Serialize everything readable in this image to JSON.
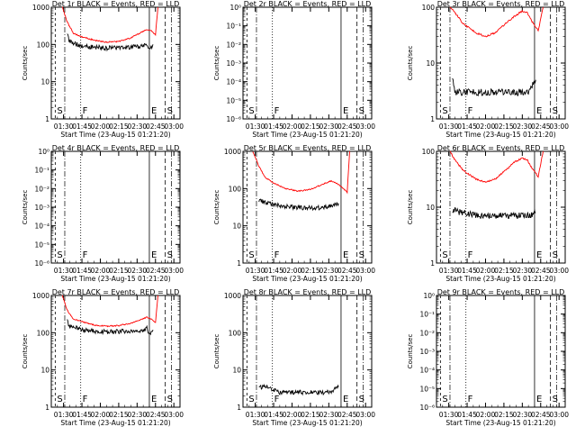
{
  "chart_data": [
    {
      "type": "line",
      "title": "Det 1r BLACK = Events, RED = LLD",
      "ylabel": "Counts/sec",
      "xlabel": "Start Time (23-Aug-15 01:21:20)",
      "yscale": "log",
      "ylim": [
        1,
        1000
      ],
      "xlim": [
        "01:20",
        "03:05"
      ],
      "y_ticks": [
        "1",
        "10",
        "100",
        "1000"
      ],
      "x_ticks": [
        "01:30",
        "01:45",
        "02:00",
        "02:15",
        "02:30",
        "02:45",
        "03:00"
      ],
      "markers": [
        {
          "label": "S",
          "time": "01:21"
        },
        {
          "label": "F",
          "time": "01:44"
        },
        {
          "label": "E",
          "time": "02:40"
        },
        {
          "label": "S",
          "time": "02:53"
        }
      ],
      "series": [
        {
          "color": "#ff0000",
          "x": [
            "01:29",
            "01:33",
            "01:38",
            "01:45",
            "01:55",
            "02:05",
            "02:15",
            "02:25",
            "02:32",
            "02:38",
            "02:42",
            "02:45",
            "02:47"
          ],
          "y": [
            1000,
            400,
            200,
            160,
            130,
            115,
            120,
            150,
            200,
            250,
            230,
            180,
            1000
          ]
        },
        {
          "color": "#000000",
          "x": [
            "01:33",
            "01:35",
            "01:45",
            "01:55",
            "02:05",
            "02:15",
            "02:25",
            "02:35",
            "02:38",
            "02:40",
            "02:43"
          ],
          "y": [
            180,
            120,
            90,
            85,
            80,
            82,
            85,
            90,
            100,
            70,
            100
          ]
        }
      ]
    },
    {
      "type": "line",
      "title": "Det 2r BLACK = Events, RED = LLD",
      "ylabel": "Counts/sec",
      "xlabel": "Start Time (23-Aug-15 01:21:20)",
      "yscale": "log",
      "ylim": [
        1e-06,
        1
      ],
      "y_ticks": [
        "10⁻⁶",
        "10⁻⁵",
        "10⁻⁴",
        "10⁻³",
        "10⁻²",
        "10⁻¹",
        "10⁰"
      ],
      "x_ticks": [
        "01:30",
        "01:45",
        "02:00",
        "02:15",
        "02:30",
        "02:45",
        "03:00"
      ],
      "markers": [
        {
          "label": "S",
          "time": "01:21"
        },
        {
          "label": "F",
          "time": "01:44"
        },
        {
          "label": "E",
          "time": "02:40"
        },
        {
          "label": "S",
          "time": "02:53"
        }
      ],
      "series": []
    },
    {
      "type": "line",
      "title": "Det 3r BLACK = Events, RED = LLD",
      "ylabel": "Counts/sec",
      "xlabel": "Start Time (23-Aug-15 01:21:20)",
      "yscale": "log",
      "ylim": [
        1,
        100
      ],
      "y_ticks": [
        "1",
        "10",
        "100"
      ],
      "x_ticks": [
        "01:30",
        "01:45",
        "02:00",
        "02:15",
        "02:30",
        "02:45",
        "03:00"
      ],
      "markers": [
        {
          "label": "S",
          "time": "01:21"
        },
        {
          "label": "F",
          "time": "01:44"
        },
        {
          "label": "E",
          "time": "02:40"
        },
        {
          "label": "S",
          "time": "02:53"
        }
      ],
      "series": [
        {
          "color": "#ff0000",
          "x": [
            "01:31",
            "01:35",
            "01:42",
            "01:52",
            "02:00",
            "02:08",
            "02:16",
            "02:24",
            "02:30",
            "02:34",
            "02:38",
            "02:43",
            "02:47"
          ],
          "y": [
            100,
            80,
            50,
            35,
            30,
            35,
            50,
            70,
            85,
            80,
            55,
            38,
            100
          ]
        },
        {
          "color": "#000000",
          "x": [
            "01:33",
            "01:35",
            "01:50",
            "02:05",
            "02:20",
            "02:35",
            "02:41"
          ],
          "y": [
            5,
            3,
            3,
            3,
            3,
            3,
            5
          ]
        }
      ]
    },
    {
      "type": "line",
      "title": "Det 4r BLACK = Events, RED = LLD",
      "ylabel": "Counts/sec",
      "xlabel": "Start Time (23-Aug-15 01:21:20)",
      "yscale": "log",
      "ylim": [
        1e-06,
        1
      ],
      "y_ticks": [
        "10⁻⁶",
        "10⁻⁵",
        "10⁻⁴",
        "10⁻³",
        "10⁻²",
        "10⁻¹",
        "10⁰"
      ],
      "x_ticks": [
        "01:30",
        "01:45",
        "02:00",
        "02:15",
        "02:30",
        "02:45",
        "03:00"
      ],
      "markers": [
        {
          "label": "S",
          "time": "01:21"
        },
        {
          "label": "F",
          "time": "01:44"
        },
        {
          "label": "E",
          "time": "02:40"
        },
        {
          "label": "S",
          "time": "02:53"
        }
      ],
      "series": []
    },
    {
      "type": "line",
      "title": "Det 5r BLACK = Events, RED = LLD",
      "ylabel": "Counts/sec",
      "xlabel": "Start Time (23-Aug-15 01:21:20)",
      "yscale": "log",
      "ylim": [
        1,
        1000
      ],
      "y_ticks": [
        "1",
        "10",
        "100",
        "1000"
      ],
      "x_ticks": [
        "01:30",
        "01:45",
        "02:00",
        "02:15",
        "02:30",
        "02:45",
        "03:00"
      ],
      "markers": [
        {
          "label": "S",
          "time": "01:21"
        },
        {
          "label": "F",
          "time": "01:44"
        },
        {
          "label": "E",
          "time": "02:40"
        },
        {
          "label": "S",
          "time": "02:53"
        }
      ],
      "series": [
        {
          "color": "#ff0000",
          "x": [
            "01:28",
            "01:33",
            "01:38",
            "01:45",
            "01:55",
            "02:05",
            "02:15",
            "02:25",
            "02:32",
            "02:38",
            "02:42",
            "02:45",
            "02:47"
          ],
          "y": [
            1000,
            400,
            200,
            140,
            100,
            85,
            95,
            130,
            160,
            130,
            100,
            80,
            1000
          ]
        },
        {
          "color": "#000000",
          "x": [
            "01:33",
            "01:40",
            "01:50",
            "02:00",
            "02:10",
            "02:20",
            "02:30",
            "02:38"
          ],
          "y": [
            50,
            40,
            35,
            32,
            30,
            30,
            32,
            40
          ]
        }
      ]
    },
    {
      "type": "line",
      "title": "Det 6r BLACK = Events, RED = LLD",
      "ylabel": "Counts/sec",
      "xlabel": "Start Time (23-Aug-15 01:21:20)",
      "yscale": "log",
      "ylim": [
        1,
        100
      ],
      "y_ticks": [
        "1",
        "10",
        "100"
      ],
      "x_ticks": [
        "01:30",
        "01:45",
        "02:00",
        "02:15",
        "02:30",
        "02:45",
        "03:00"
      ],
      "markers": [
        {
          "label": "S",
          "time": "01:21"
        },
        {
          "label": "F",
          "time": "01:44"
        },
        {
          "label": "E",
          "time": "02:40"
        },
        {
          "label": "S",
          "time": "02:53"
        }
      ],
      "series": [
        {
          "color": "#ff0000",
          "x": [
            "01:31",
            "01:35",
            "01:42",
            "01:52",
            "02:00",
            "02:08",
            "02:16",
            "02:24",
            "02:30",
            "02:34",
            "02:38",
            "02:43",
            "02:47"
          ],
          "y": [
            100,
            70,
            45,
            32,
            28,
            32,
            45,
            65,
            75,
            70,
            50,
            35,
            100
          ]
        },
        {
          "color": "#000000",
          "x": [
            "01:33",
            "01:40",
            "01:55",
            "02:10",
            "02:25",
            "02:35",
            "02:41"
          ],
          "y": [
            9,
            8,
            7,
            7,
            7,
            7,
            8
          ]
        }
      ]
    },
    {
      "type": "line",
      "title": "Det 7r BLACK = Events, RED = LLD",
      "ylabel": "Counts/sec",
      "xlabel": "Start Time (23-Aug-15 01:21:20)",
      "yscale": "log",
      "ylim": [
        1,
        1000
      ],
      "y_ticks": [
        "1",
        "10",
        "100",
        "1000"
      ],
      "x_ticks": [
        "01:30",
        "01:45",
        "02:00",
        "02:15",
        "02:30",
        "02:45",
        "03:00"
      ],
      "markers": [
        {
          "label": "S",
          "time": "01:21"
        },
        {
          "label": "F",
          "time": "01:44"
        },
        {
          "label": "E",
          "time": "02:40"
        },
        {
          "label": "S",
          "time": "02:53"
        }
      ],
      "series": [
        {
          "color": "#ff0000",
          "x": [
            "01:29",
            "01:33",
            "01:38",
            "01:45",
            "01:55",
            "02:05",
            "02:15",
            "02:25",
            "02:32",
            "02:38",
            "02:42",
            "02:45",
            "02:47"
          ],
          "y": [
            1000,
            400,
            230,
            200,
            160,
            150,
            155,
            180,
            220,
            260,
            230,
            190,
            1000
          ]
        },
        {
          "color": "#000000",
          "x": [
            "01:33",
            "01:35",
            "01:45",
            "01:55",
            "02:05",
            "02:15",
            "02:25",
            "02:35",
            "02:38",
            "02:40",
            "02:43"
          ],
          "y": [
            200,
            150,
            120,
            110,
            105,
            108,
            110,
            115,
            130,
            90,
            120
          ]
        }
      ]
    },
    {
      "type": "line",
      "title": "Det 8r BLACK = Events, RED = LLD",
      "ylabel": "Counts/sec",
      "xlabel": "Start Time (23-Aug-15 01:21:20)",
      "yscale": "log",
      "ylim": [
        1,
        1000
      ],
      "y_ticks": [
        "1",
        "10",
        "100",
        "1000"
      ],
      "x_ticks": [
        "01:30",
        "01:45",
        "02:00",
        "02:15",
        "02:30",
        "02:45",
        "03:00"
      ],
      "markers": [
        {
          "label": "S",
          "time": "01:21"
        },
        {
          "label": "F",
          "time": "01:44"
        },
        {
          "label": "E",
          "time": "02:40"
        },
        {
          "label": "S",
          "time": "02:53"
        }
      ],
      "series": [
        {
          "color": "#000000",
          "x": [
            "01:33",
            "01:40",
            "01:50",
            "02:00",
            "02:10",
            "02:20",
            "02:30",
            "02:38"
          ],
          "y": [
            3.5,
            3.5,
            2.5,
            2.5,
            2.5,
            2.5,
            2.5,
            3.5
          ]
        }
      ]
    },
    {
      "type": "line",
      "title": "Det 9r BLACK = Events, RED = LLD",
      "ylabel": "Counts/sec",
      "xlabel": "Start Time (23-Aug-15 01:21:20)",
      "yscale": "log",
      "ylim": [
        1e-06,
        1
      ],
      "y_ticks": [
        "10⁻⁶",
        "10⁻⁵",
        "10⁻⁴",
        "10⁻³",
        "10⁻²",
        "10⁻¹",
        "10⁰"
      ],
      "x_ticks": [
        "01:30",
        "01:45",
        "02:00",
        "02:15",
        "02:30",
        "02:45",
        "03:00"
      ],
      "markers": [
        {
          "label": "S",
          "time": "01:21"
        },
        {
          "label": "F",
          "time": "01:44"
        },
        {
          "label": "E",
          "time": "02:40"
        },
        {
          "label": "S",
          "time": "02:53"
        }
      ],
      "series": []
    }
  ]
}
